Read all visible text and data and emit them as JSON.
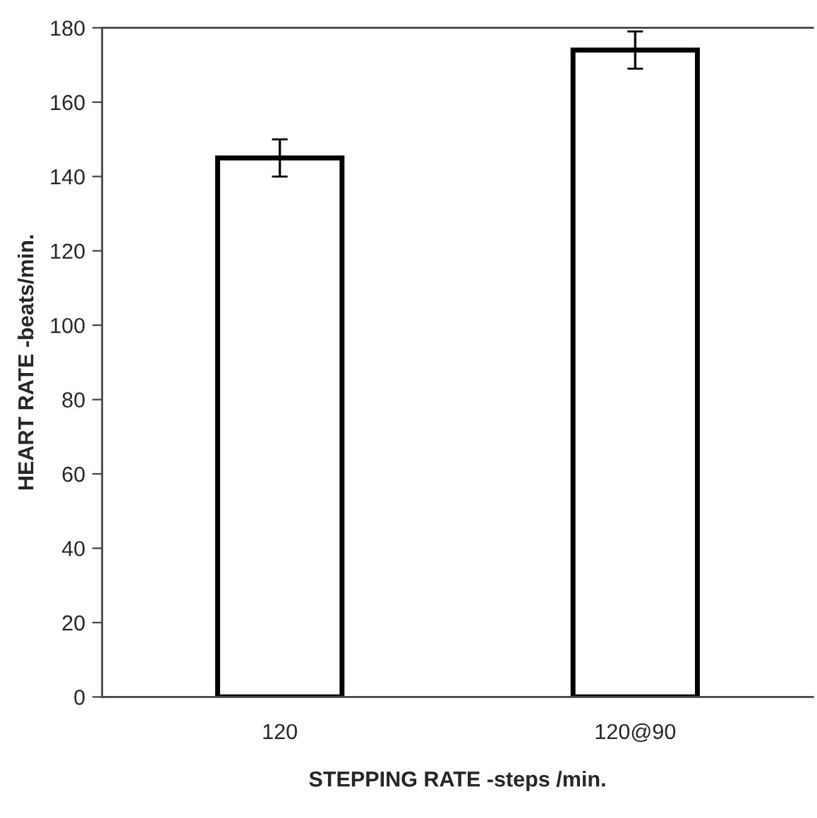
{
  "chart_data": {
    "type": "bar",
    "xlabel": "STEPPING RATE -steps /min.",
    "ylabel": "HEART RATE -beats/min.",
    "categories": [
      "120",
      "120@90"
    ],
    "values": [
      145,
      174
    ],
    "errors": [
      5,
      5
    ],
    "color": "#ffffff",
    "ylim": [
      0,
      180
    ],
    "yticks": [
      0,
      20,
      40,
      60,
      80,
      100,
      120,
      140,
      160,
      180
    ],
    "grid": false
  }
}
